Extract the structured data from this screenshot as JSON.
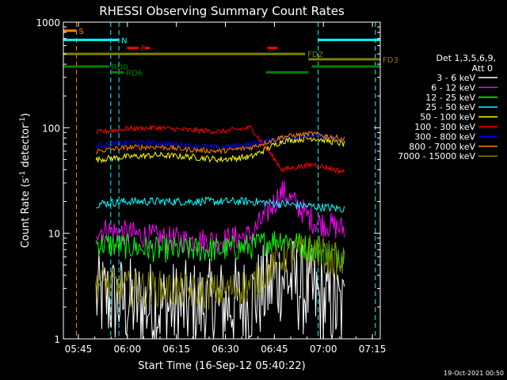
{
  "chart_data": {
    "type": "line",
    "title": "RHESSI Observing Summary Count Rates",
    "xlabel": "Start Time (16-Sep-12 05:40:22)",
    "ylabel_main": "Count Rate (s",
    "ylabel_sup1": "-1",
    "ylabel_mid": " detector",
    "ylabel_sup2": "-1",
    "ylabel_end": ")",
    "yscale": "log",
    "ylim": [
      1,
      1000
    ],
    "xlim_minutes": [
      0,
      97
    ],
    "x_ticks": [
      {
        "label": "05:45",
        "minute": 4.6
      },
      {
        "label": "06:00",
        "minute": 19.6
      },
      {
        "label": "06:15",
        "minute": 34.6
      },
      {
        "label": "06:30",
        "minute": 49.6
      },
      {
        "label": "06:45",
        "minute": 64.6
      },
      {
        "label": "07:00",
        "minute": 79.6
      },
      {
        "label": "07:15",
        "minute": 94.6
      }
    ],
    "y_ticks": [
      {
        "label": "1",
        "value": 1
      },
      {
        "label": "10",
        "value": 10
      },
      {
        "label": "100",
        "value": 100
      },
      {
        "label": "1000",
        "value": 1000
      }
    ],
    "legend_title": "Det 1,3,5,6,9,",
    "legend_subtitle": "Att 0",
    "legend_placement": "right",
    "series": [
      {
        "name": "3 - 6 keV",
        "color": "#ffffff",
        "base": [
          2.5,
          2.2,
          2.0,
          2.0,
          2.1,
          2.3,
          4.0,
          2.5,
          1.8
        ],
        "noise": 0.9
      },
      {
        "name": "6 - 12 keV",
        "color": "#ff00ff",
        "base": [
          11,
          10,
          9,
          8.5,
          8.5,
          9.5,
          25,
          13,
          11
        ],
        "noise": 0.25
      },
      {
        "name": "12 - 25 keV",
        "color": "#00ff00",
        "base": [
          8,
          7.5,
          7,
          7,
          7,
          7.5,
          9,
          7,
          6
        ],
        "noise": 0.25
      },
      {
        "name": "25 - 50 keV",
        "color": "#00ffff",
        "base": [
          19,
          20,
          20,
          20,
          20,
          20,
          19,
          18,
          17
        ],
        "noise": 0.08
      },
      {
        "name": "50 - 100 keV",
        "color": "#ffff00",
        "base": [
          50,
          53,
          55,
          53,
          50,
          53,
          75,
          80,
          70
        ],
        "noise": 0.06
      },
      {
        "name": "100 - 300 keV",
        "color": "#ff0000",
        "base": [
          90,
          98,
          100,
          95,
          92,
          100,
          40,
          45,
          38
        ],
        "noise": 0.05
      },
      {
        "name": "300 - 800 keV",
        "color": "#0000ff",
        "base": [
          68,
          72,
          72,
          68,
          65,
          70,
          80,
          85,
          75
        ],
        "noise": 0.05
      },
      {
        "name": "800 - 7000 keV",
        "color": "#ff8000",
        "base": [
          60,
          65,
          66,
          62,
          60,
          65,
          82,
          88,
          78
        ],
        "noise": 0.05
      },
      {
        "name": "7000 - 15000 keV",
        "color": "#808000",
        "base": [
          3.5,
          3.0,
          3.0,
          2.8,
          2.8,
          3.2,
          6,
          7,
          5
        ],
        "noise": 0.35
      }
    ],
    "series_time_range": [
      10.0,
      86.0
    ],
    "flag_bars": [
      {
        "label": "S",
        "color": "#ff8000",
        "from": 0,
        "to": 4.0,
        "value": 830
      },
      {
        "label": "N",
        "color": "#00ffff",
        "from": 0,
        "to": 17.0,
        "value": 680
      },
      {
        "label": "F",
        "color": "#ff0000",
        "from": 19.5,
        "to": 23.0,
        "value": 570
      },
      {
        "label": "",
        "color": "#ff0000",
        "from": 25.0,
        "to": 26.5,
        "value": 570
      },
      {
        "label": "",
        "color": "#ff0000",
        "from": 62.5,
        "to": 65.5,
        "value": 570
      },
      {
        "label": "",
        "color": "#00ffff",
        "from": 78.0,
        "to": 97.0,
        "value": 680
      },
      {
        "label": "FD2",
        "color": "#808000",
        "from": 0,
        "to": 74.0,
        "value": 500
      },
      {
        "label": "FD3",
        "color": "#808000",
        "from": 75.0,
        "to": 97.0,
        "value": 445
      },
      {
        "label": "RD0",
        "color": "#008000",
        "from": 0,
        "to": 14.0,
        "value": 380
      },
      {
        "label": "RD6",
        "color": "#008000",
        "from": 14.5,
        "to": 18.5,
        "value": 335
      },
      {
        "label": "",
        "color": "#008000",
        "from": 62.0,
        "to": 75.0,
        "value": 335
      },
      {
        "label": "",
        "color": "#008000",
        "from": 76.0,
        "to": 97.0,
        "value": 380
      }
    ],
    "vertical_markers": [
      {
        "color": "#ff8000",
        "minute": 4.0
      },
      {
        "color": "#00ffff",
        "minute": 14.5
      },
      {
        "color": "#00ffff",
        "minute": 17.0
      },
      {
        "color": "#00ffff",
        "minute": 78.0
      },
      {
        "color": "#00ffff",
        "minute": 95.5
      }
    ],
    "footer_date": "19-Oct-2021 00:50"
  }
}
